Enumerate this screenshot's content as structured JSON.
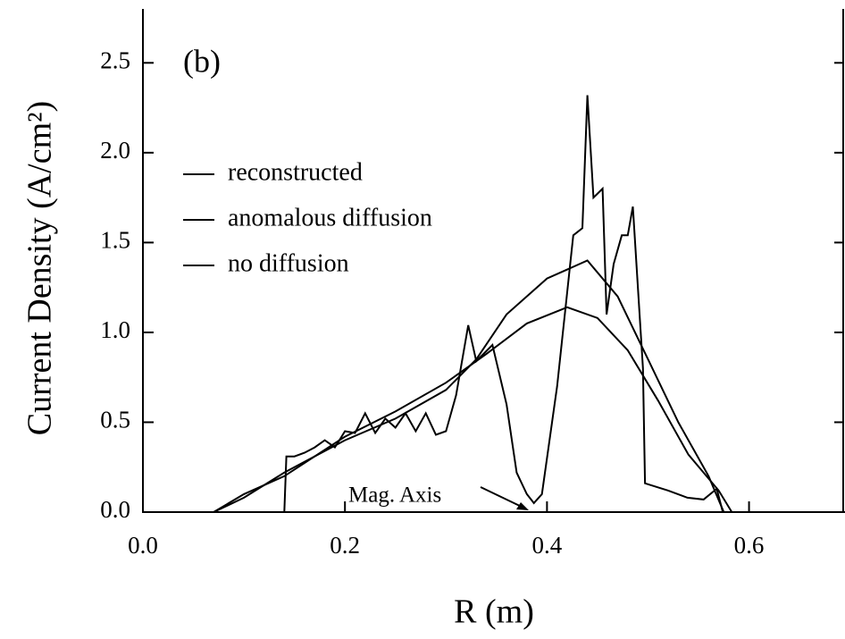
{
  "chart_data": {
    "type": "line",
    "annotation": "(b)",
    "arrow_label": "Mag. Axis",
    "xlabel": "R (m)",
    "ylabel": "Current Density (A/cm²)",
    "xlim": [
      0,
      0.695
    ],
    "ylim": [
      0,
      2.8
    ],
    "xticks": [
      {
        "value": 0,
        "label": "0.0"
      },
      0.2,
      0.4,
      0.6
    ],
    "yticks": [
      {
        "value": 0,
        "label": "0.0"
      },
      0.5,
      {
        "value": 1,
        "label": "1.0"
      },
      1.5,
      {
        "value": 2,
        "label": "2.0"
      },
      2.5
    ],
    "series": [
      {
        "name": "reconstructed",
        "color": "#000000",
        "x": [
          0.05,
          0.14,
          0.142,
          0.15,
          0.16,
          0.17,
          0.18,
          0.19,
          0.2,
          0.21,
          0.22,
          0.23,
          0.24,
          0.25,
          0.26,
          0.27,
          0.28,
          0.29,
          0.3,
          0.31,
          0.322,
          0.33,
          0.346,
          0.36,
          0.37,
          0.38,
          0.387,
          0.395,
          0.41,
          0.426,
          0.435,
          0.44,
          0.446,
          0.455,
          0.459,
          0.466,
          0.474,
          0.48,
          0.485,
          0.495,
          0.497,
          0.52,
          0.539,
          0.555,
          0.568,
          0.574
        ],
        "values": [
          0,
          0,
          0.31,
          0.31,
          0.33,
          0.36,
          0.4,
          0.36,
          0.45,
          0.44,
          0.55,
          0.44,
          0.52,
          0.47,
          0.55,
          0.45,
          0.55,
          0.43,
          0.45,
          0.65,
          1.04,
          0.84,
          0.93,
          0.6,
          0.22,
          0.1,
          0.05,
          0.1,
          0.7,
          1.54,
          1.58,
          2.32,
          1.75,
          1.8,
          1.1,
          1.38,
          1.54,
          1.54,
          1.7,
          0.8,
          0.16,
          0.12,
          0.08,
          0.07,
          0.13,
          0
        ]
      },
      {
        "name": "anomalous diffusion",
        "color": "#000000",
        "x": [
          0.07,
          0.1,
          0.14,
          0.2,
          0.25,
          0.3,
          0.33,
          0.36,
          0.4,
          0.44,
          0.47,
          0.5,
          0.53,
          0.56,
          0.575
        ],
        "values": [
          0,
          0.08,
          0.22,
          0.4,
          0.52,
          0.68,
          0.85,
          1.1,
          1.3,
          1.4,
          1.2,
          0.85,
          0.5,
          0.2,
          0
        ]
      },
      {
        "name": "no diffusion",
        "color": "#000000",
        "x": [
          0.07,
          0.1,
          0.14,
          0.2,
          0.25,
          0.3,
          0.34,
          0.38,
          0.42,
          0.45,
          0.48,
          0.51,
          0.54,
          0.57,
          0.583
        ],
        "values": [
          0,
          0.1,
          0.2,
          0.42,
          0.56,
          0.72,
          0.88,
          1.05,
          1.14,
          1.08,
          0.9,
          0.62,
          0.32,
          0.12,
          0
        ]
      }
    ]
  }
}
